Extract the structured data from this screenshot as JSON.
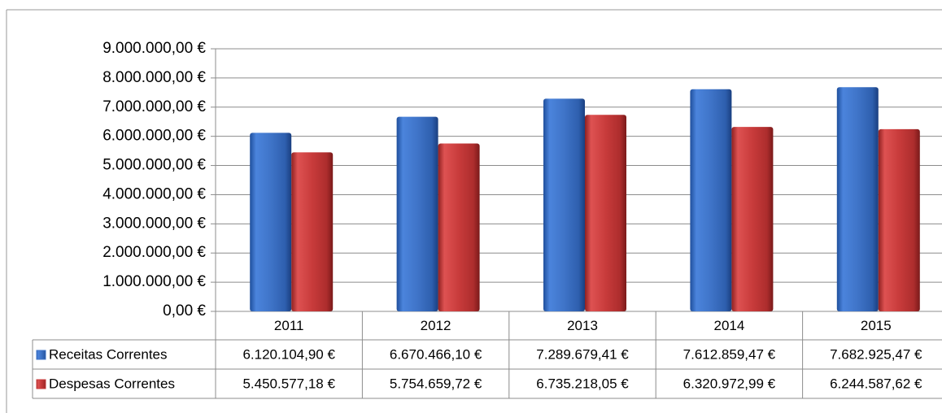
{
  "chart_data": {
    "type": "bar",
    "categories": [
      "2011",
      "2012",
      "2013",
      "2014",
      "2015"
    ],
    "series": [
      {
        "name": "Receitas Correntes",
        "color": "#3f74c8",
        "values": [
          6120104.9,
          6670466.1,
          7289679.41,
          7612859.47,
          7682925.47
        ],
        "value_labels": [
          "6.120.104,90 €",
          "6.670.466,10 €",
          "7.289.679,41 €",
          "7.612.859,47 €",
          "7.682.925,47 €"
        ]
      },
      {
        "name": "Despesas Correntes",
        "color": "#c83b3b",
        "values": [
          5450577.18,
          5754659.72,
          6735218.05,
          6320972.99,
          6244587.62
        ],
        "value_labels": [
          "5.450.577,18 €",
          "5.754.659,72 €",
          "6.735.218,05 €",
          "6.320.972,99 €",
          "6.244.587,62 €"
        ]
      }
    ],
    "ylim": [
      0,
      9000000
    ],
    "yticks": [
      {
        "value": 0,
        "label": "0,00 €"
      },
      {
        "value": 1000000,
        "label": "1.000.000,00 €"
      },
      {
        "value": 2000000,
        "label": "2.000.000,00 €"
      },
      {
        "value": 3000000,
        "label": "3.000.000,00 €"
      },
      {
        "value": 4000000,
        "label": "4.000.000,00 €"
      },
      {
        "value": 5000000,
        "label": "5.000.000,00 €"
      },
      {
        "value": 6000000,
        "label": "6.000.000,00 €"
      },
      {
        "value": 7000000,
        "label": "7.000.000,00 €"
      },
      {
        "value": 8000000,
        "label": "8.000.000,00 €"
      },
      {
        "value": 9000000,
        "label": "9.000.000,00 €"
      }
    ],
    "grid": true
  }
}
